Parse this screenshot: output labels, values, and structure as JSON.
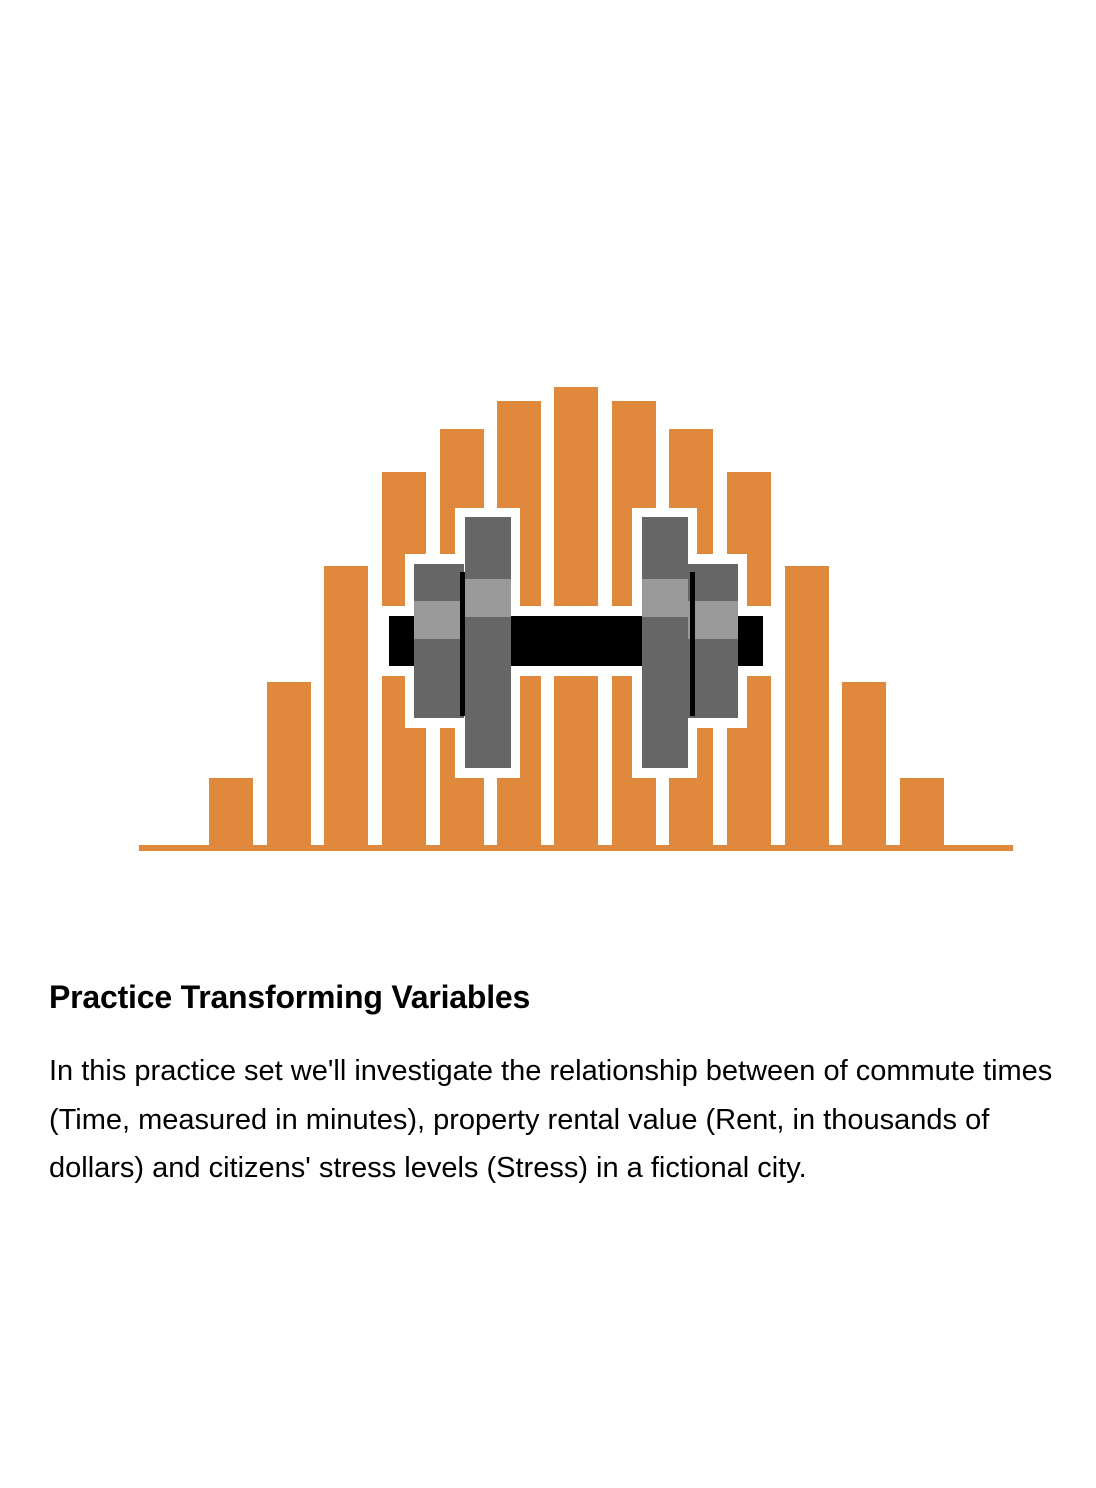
{
  "hero": {
    "icon": "dumbbell-over-histogram-icon",
    "colors": {
      "bar": "#E0883B",
      "dumbbell_plate": "#666666",
      "dumbbell_highlight": "#9A9A9A",
      "dumbbell_bar": "#000000",
      "outline": "#ffffff"
    }
  },
  "card": {
    "title": "Practice Transforming Variables",
    "description": "In this practice set we'll investigate the relationship between of commute times (Time, measured in minutes), property rental value (Rent, in thousands of dollars) and citizens' stress levels (Stress) in a fictional city."
  }
}
